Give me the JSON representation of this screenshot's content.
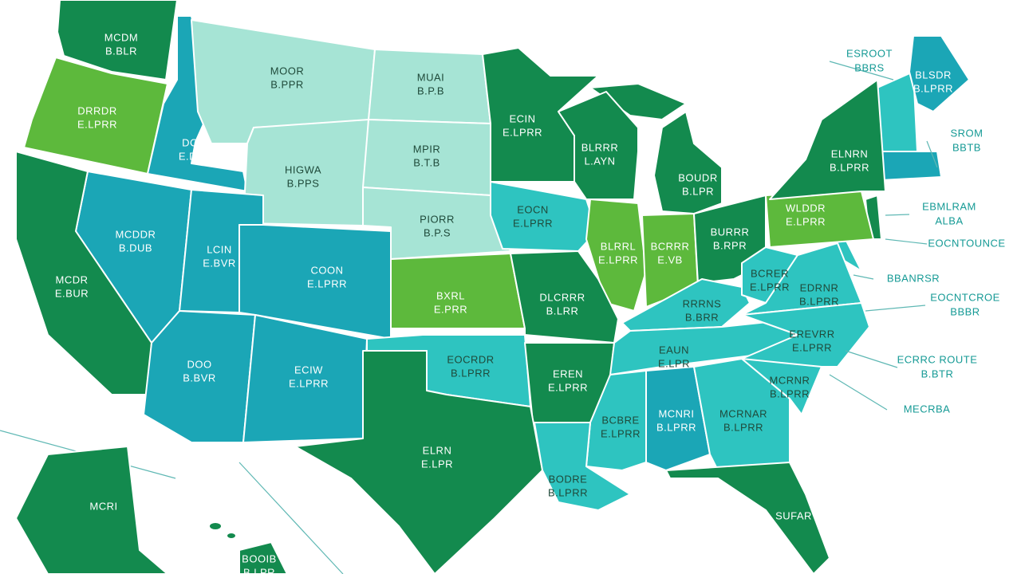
{
  "states": [
    {
      "name": "MCDM",
      "value": "B.BLR"
    },
    {
      "name": "DRRDR",
      "value": "E.LPRR"
    },
    {
      "name": "DCDI",
      "value": "E.DVR"
    },
    {
      "name": "MOOR",
      "value": "B.PPR"
    },
    {
      "name": "MUAI",
      "value": "B.P.B"
    },
    {
      "name": "ECIN",
      "value": "E.LPRR"
    },
    {
      "name": "HIGWA",
      "value": "B.PPS"
    },
    {
      "name": "MPIR",
      "value": "B.T.B"
    },
    {
      "name": "PIORR",
      "value": "B.P.S"
    },
    {
      "name": "BLRRR",
      "value": "L.AYN"
    },
    {
      "name": "BOUDR",
      "value": "B.LPR"
    },
    {
      "name": "EOCN",
      "value": "E.LPRR"
    },
    {
      "name": "MCDDR",
      "value": "B.DUB"
    },
    {
      "name": "MCDR",
      "value": "E.BUR"
    },
    {
      "name": "LCIN",
      "value": "E.BVR"
    },
    {
      "name": "COON",
      "value": "E.LPRR"
    },
    {
      "name": "BXRL",
      "value": "E.PRR"
    },
    {
      "name": "BLRRL",
      "value": "E.LPRR"
    },
    {
      "name": "BCRRR",
      "value": "E.VB"
    },
    {
      "name": "BURRR",
      "value": "B.RPR"
    },
    {
      "name": "WLDDR",
      "value": "E.LPRR"
    },
    {
      "name": "ELNRN",
      "value": "B.LPRR"
    },
    {
      "name": "DLCRRR",
      "value": "B.LRR"
    },
    {
      "name": "DOO",
      "value": "B.BVR"
    },
    {
      "name": "ECIW",
      "value": "E.LPRR"
    },
    {
      "name": "EOCRDR",
      "value": "B.LPRR"
    },
    {
      "name": "EREN",
      "value": "E.LPRR"
    },
    {
      "name": "ELRN",
      "value": "E.LPR"
    },
    {
      "name": "RRRNS",
      "value": "B.BRR"
    },
    {
      "name": "BCRER",
      "value": "E.LPRR"
    },
    {
      "name": "EDRNR",
      "value": "B.LPRR"
    },
    {
      "name": "EAUN",
      "value": "E.LPR"
    },
    {
      "name": "EREVRR",
      "value": "E.LPRR"
    },
    {
      "name": "BCBRE",
      "value": "E.LPRR"
    },
    {
      "name": "MCNRI",
      "value": "B.LPRR"
    },
    {
      "name": "MCRNAR",
      "value": "B.LPRR"
    },
    {
      "name": "MCRNR",
      "value": "B.LPRR"
    },
    {
      "name": "BODRE",
      "value": "B.LPRR"
    },
    {
      "name": "SUFAR"
    },
    {
      "name": "BLSDR",
      "value": "B.LPRR"
    },
    {
      "name": "MCRI"
    },
    {
      "name": "BOOIB",
      "value": "B.LPR"
    }
  ],
  "callouts": [
    {
      "name": "ESROOT",
      "value": "BBRS"
    },
    {
      "name": "SROM",
      "value": "BBTB"
    },
    {
      "name": "EBMLRAM",
      "value": "ALBA"
    },
    {
      "name": "EOCNTOUNCE"
    },
    {
      "name": "BBANRSR"
    },
    {
      "name": "EOCNTCROE",
      "value": "BBBR"
    },
    {
      "name": "ECRRC ROUTE",
      "value": "B.BTR"
    },
    {
      "name": "MECRBA"
    }
  ]
}
